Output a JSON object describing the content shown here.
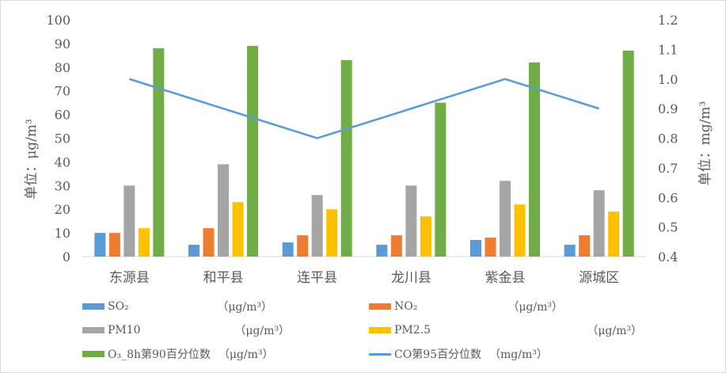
{
  "chart_data": {
    "type": "bar+line",
    "categories": [
      "东源县",
      "和平县",
      "连平县",
      "龙川县",
      "紫金县",
      "源城区"
    ],
    "ylabel_left": "单位：μg/m³",
    "ylabel_right": "单位：mg/m³",
    "ylim_left": [
      0,
      100
    ],
    "ylim_right": [
      0.4,
      1.2
    ],
    "yticks_left": [
      "0",
      "10",
      "20",
      "30",
      "40",
      "50",
      "60",
      "70",
      "80",
      "90",
      "100"
    ],
    "yticks_right": [
      "0.4",
      "0.5",
      "0.6",
      "0.7",
      "0.8",
      "0.9",
      "1.0",
      "1.1",
      "1.2"
    ],
    "grid": false,
    "legend_position": "bottom",
    "series": [
      {
        "name": "SO₂",
        "unit": "（μg/m³）",
        "type": "bar",
        "axis": "left",
        "color": "#5b9bd5",
        "values": [
          10,
          5,
          6,
          5,
          7,
          5
        ]
      },
      {
        "name": "NO₂",
        "unit": "（μg/m³）",
        "type": "bar",
        "axis": "left",
        "color": "#ed7d31",
        "values": [
          10,
          12,
          9,
          9,
          8,
          9
        ]
      },
      {
        "name": "PM10",
        "unit": "（μg/m³）",
        "type": "bar",
        "axis": "left",
        "color": "#a5a5a5",
        "values": [
          30,
          39,
          26,
          30,
          32,
          28
        ]
      },
      {
        "name": "PM2.5",
        "unit": "（μg/m³）",
        "type": "bar",
        "axis": "left",
        "color": "#ffc000",
        "values": [
          12,
          23,
          20,
          17,
          22,
          19
        ]
      },
      {
        "name": "O₃_8h第90百分位数",
        "unit": "（μg/m³）",
        "type": "bar",
        "axis": "left",
        "color": "#70ad47",
        "values": [
          88,
          89,
          83,
          65,
          82,
          87
        ]
      },
      {
        "name": "CO第95百分位数",
        "unit": "（mg/m³）",
        "type": "line",
        "axis": "right",
        "color": "#5b9bd5",
        "values": [
          1.0,
          0.9,
          0.8,
          0.9,
          1.0,
          0.9
        ]
      }
    ]
  }
}
